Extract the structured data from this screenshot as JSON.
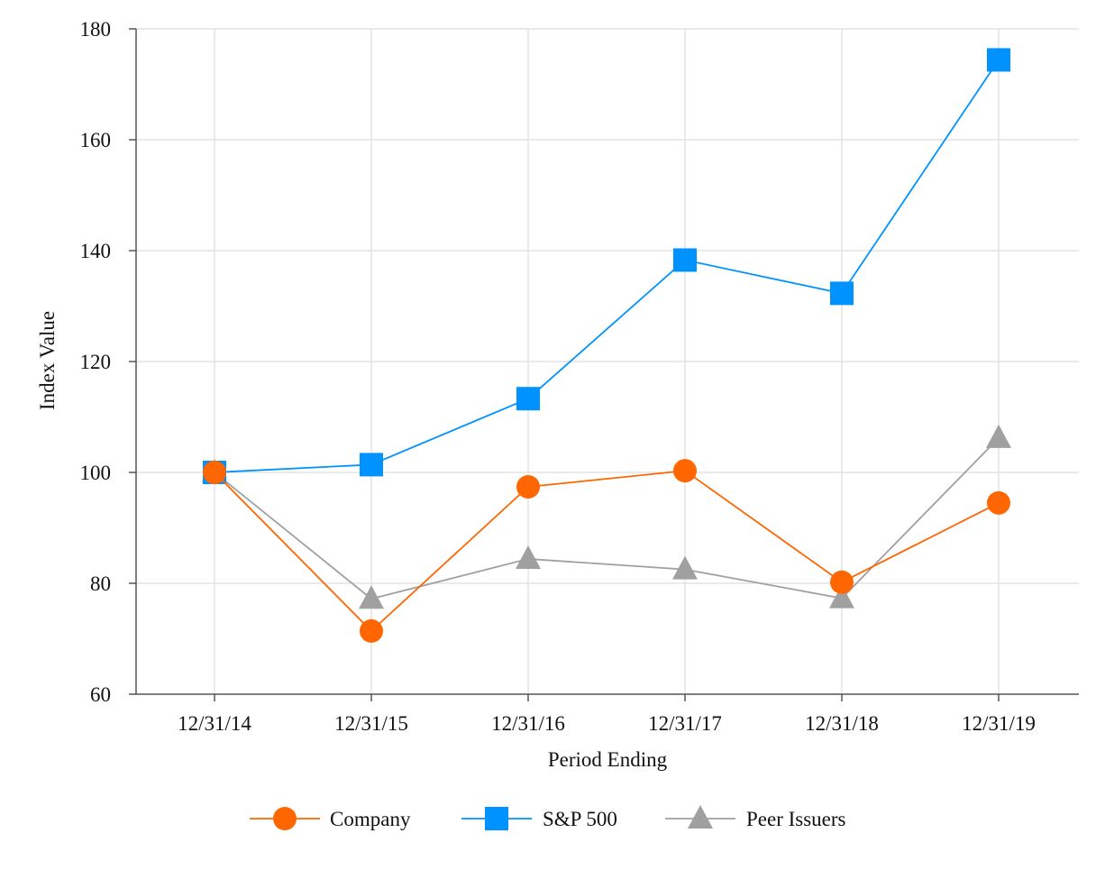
{
  "chart_data": {
    "type": "line",
    "title": "",
    "xlabel": "Period Ending",
    "ylabel": "Index Value",
    "categories": [
      "12/31/14",
      "12/31/15",
      "12/31/16",
      "12/31/17",
      "12/31/18",
      "12/31/19"
    ],
    "ylim": [
      60,
      180
    ],
    "yticks": [
      60,
      80,
      100,
      120,
      140,
      160,
      180
    ],
    "grid": true,
    "legend_position": "bottom-center",
    "series": [
      {
        "name": "Company",
        "marker": "circle",
        "color": "#FF6600",
        "values": [
          100,
          71.4,
          97.4,
          100.3,
          80.2,
          94.5
        ]
      },
      {
        "name": "S&P 500",
        "marker": "square",
        "color": "#0093FF",
        "values": [
          100,
          101.4,
          113.3,
          138.3,
          132.3,
          174.4
        ]
      },
      {
        "name": "Peer Issuers",
        "marker": "triangle",
        "color": "#A0A0A0",
        "values": [
          100,
          77.2,
          84.4,
          82.5,
          77.3,
          106.2
        ]
      }
    ]
  }
}
